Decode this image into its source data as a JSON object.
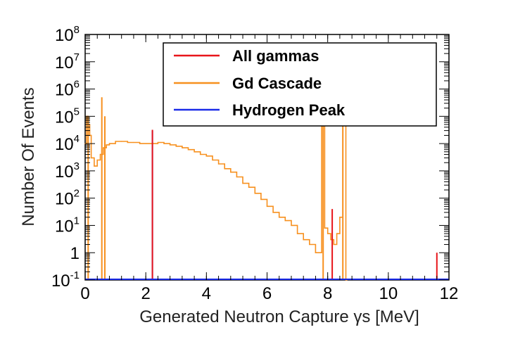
{
  "chart_data": {
    "type": "line",
    "title": "",
    "xlabel": "Generated Neutron Capture γs [MeV]",
    "ylabel": "Number Of Events",
    "xlim": [
      0,
      12
    ],
    "ylim": [
      0.1,
      100000000
    ],
    "yscale": "log",
    "x_ticks": [
      0,
      2,
      4,
      6,
      8,
      10,
      12
    ],
    "x_tick_labels": [
      "0",
      "2",
      "4",
      "6",
      "8",
      "10",
      "12"
    ],
    "y_ticks": [
      0.1,
      1,
      10,
      100,
      1000,
      10000,
      100000,
      1000000,
      10000000,
      100000000
    ],
    "y_tick_labels": [
      {
        "base": "10",
        "exp": "-1"
      },
      {
        "base": "1",
        "exp": ""
      },
      {
        "base": "10",
        "exp": "1"
      },
      {
        "base": "10",
        "exp": "2"
      },
      {
        "base": "10",
        "exp": "3"
      },
      {
        "base": "10",
        "exp": "4"
      },
      {
        "base": "10",
        "exp": "5"
      },
      {
        "base": "10",
        "exp": "6"
      },
      {
        "base": "10",
        "exp": "7"
      },
      {
        "base": "10",
        "exp": "8"
      }
    ],
    "legend": {
      "position": "top-right",
      "entries": [
        {
          "name": "All gammas",
          "color": "#e8151a"
        },
        {
          "name": "Gd Cascade",
          "color": "#f7901e"
        },
        {
          "name": "Hydrogen Peak",
          "color": "#1a2be8"
        }
      ]
    },
    "series": [
      {
        "name": "Gd Cascade",
        "color": "#f7901e",
        "x": [
          0.0,
          0.05,
          0.1,
          0.15,
          0.2,
          0.3,
          0.4,
          0.5,
          0.6,
          0.7,
          0.8,
          1.0,
          1.2,
          1.4,
          1.6,
          1.8,
          2.0,
          2.2,
          2.4,
          2.6,
          2.8,
          3.0,
          3.2,
          3.4,
          3.6,
          3.8,
          4.0,
          4.2,
          4.4,
          4.6,
          4.8,
          5.0,
          5.2,
          5.4,
          5.6,
          5.8,
          6.0,
          6.2,
          6.4,
          6.6,
          6.8,
          7.0,
          7.2,
          7.4,
          7.6,
          7.8,
          7.9,
          8.0,
          8.1,
          8.2,
          8.3,
          8.4,
          8.5,
          8.6
        ],
        "y": [
          10000,
          100000,
          50000,
          20000,
          3000,
          1500,
          2500,
          4000,
          7000,
          9000,
          10000,
          12000,
          12000,
          11000,
          11000,
          10000,
          10000,
          10000,
          11000,
          10000,
          9000,
          8000,
          7000,
          6000,
          5000,
          4000,
          3500,
          2500,
          1800,
          1200,
          900,
          600,
          350,
          250,
          150,
          90,
          50,
          30,
          20,
          15,
          10,
          5,
          3,
          2,
          1,
          150000,
          8,
          5,
          3,
          2,
          5,
          20,
          150000,
          0.1
        ]
      },
      {
        "name": "Gd Cascade spikes",
        "color": "#f7901e",
        "spikes": [
          {
            "x": 0.1,
            "y": 100000
          },
          {
            "x": 0.55,
            "y": 500000
          },
          {
            "x": 0.65,
            "y": 100000
          },
          {
            "x": 7.85,
            "y": 150000
          },
          {
            "x": 8.5,
            "y": 150000
          },
          {
            "x": 7.05,
            "y": 0.1
          }
        ]
      },
      {
        "name": "Hydrogen Peak",
        "color": "#1a2be8",
        "spikes": [
          {
            "x": 2.22,
            "y": 30000
          }
        ]
      },
      {
        "name": "All gammas",
        "color": "#e8151a",
        "spikes": [
          {
            "x": 2.22,
            "y": 32000
          },
          {
            "x": 8.15,
            "y": 40
          },
          {
            "x": 11.6,
            "y": 1
          }
        ]
      }
    ]
  }
}
